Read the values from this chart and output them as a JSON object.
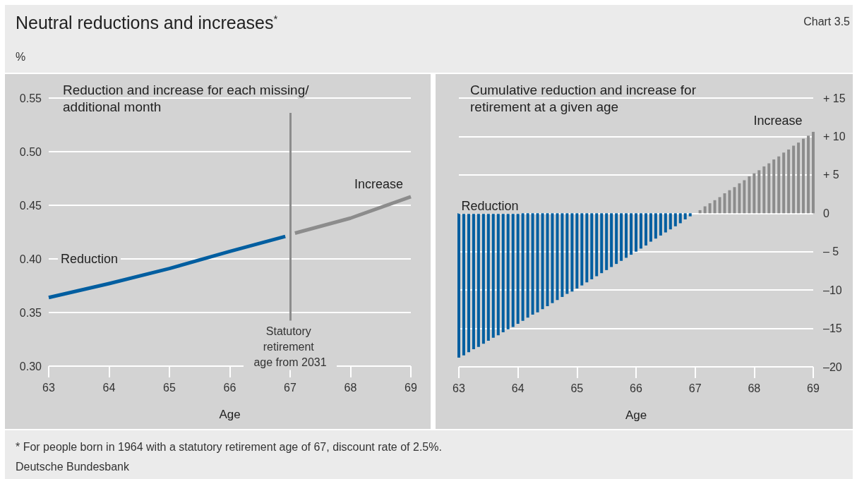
{
  "chart_data": [
    {
      "type": "line",
      "title": "Reduction and increase for each missing/ additional month",
      "xlabel": "Age",
      "ylabel": "%",
      "annotations": [
        "Neutral reductions and increases$^{*}$",
        "Chart 3.5",
        "* For people born in 1964 with a statutory retirement age of 67, discount rate of 2.5%.",
        "Deutsche Bundesbank"
      ],
      "series": [
        {
          "name": "Reduction",
          "color": "#005ea0",
          "x": [
            63,
            64,
            65,
            66,
            66.92
          ],
          "values": [
            0.364,
            0.377,
            0.391,
            0.407,
            0.421
          ]
        },
        {
          "name": "Increase",
          "color": "#8c8c8c",
          "x": [
            67.08,
            68,
            69
          ],
          "values": [
            0.424,
            0.438,
            0.458
          ]
        }
      ],
      "xlim": [
        63,
        69
      ],
      "xticks": [
        63,
        64,
        65,
        66,
        67,
        68,
        69
      ],
      "ylim": [
        0.3,
        0.55
      ],
      "yticks": [
        {
          "value": 0.3,
          "label": "0.30"
        },
        0.35,
        {
          "value": 0.4,
          "label": "0.40"
        },
        0.45,
        {
          "value": 0.5,
          "label": "0.50"
        },
        0.55
      ],
      "ref_lines": [
        {
          "axis": "x",
          "value": 67,
          "label": "Statutory retirement age from 2031",
          "color": "#8c8c8c"
        }
      ],
      "grid": "y",
      "marker": "none",
      "line_style": "solid"
    },
    {
      "type": "bar",
      "title": "Cumulative reduction and increase for retirement at a given age",
      "xlabel": "Age",
      "series": [
        {
          "name": "Reduction",
          "color": "#005ea0",
          "x": [
            63,
            63.083,
            63.167,
            63.25,
            63.333,
            63.417,
            63.5,
            63.583,
            63.667,
            63.75,
            63.833,
            63.917,
            64,
            64.083,
            64.167,
            64.25,
            64.333,
            64.417,
            64.5,
            64.583,
            64.667,
            64.75,
            64.833,
            64.917,
            65,
            65.083,
            65.167,
            65.25,
            65.333,
            65.417,
            65.5,
            65.583,
            65.667,
            65.75,
            65.833,
            65.917,
            66,
            66.083,
            66.167,
            66.25,
            66.333,
            66.417,
            66.5,
            66.583,
            66.667,
            66.75,
            66.833,
            66.917
          ],
          "values": [
            -18.8,
            -18.5,
            -18.1,
            -17.7,
            -17.4,
            -17.0,
            -16.6,
            -16.2,
            -15.9,
            -15.5,
            -15.1,
            -14.8,
            -14.4,
            -14.0,
            -13.6,
            -13.2,
            -12.9,
            -12.5,
            -12.1,
            -11.7,
            -11.3,
            -10.9,
            -10.5,
            -10.2,
            -9.8,
            -9.4,
            -9.0,
            -8.6,
            -8.2,
            -7.8,
            -7.4,
            -7.0,
            -6.6,
            -6.2,
            -5.8,
            -5.4,
            -5.0,
            -4.6,
            -4.2,
            -3.7,
            -3.3,
            -2.9,
            -2.5,
            -2.1,
            -1.7,
            -1.3,
            -0.8,
            -0.4
          ]
        },
        {
          "name": "Increase",
          "color": "#8c8c8c",
          "x": [
            67.083,
            67.167,
            67.25,
            67.333,
            67.417,
            67.5,
            67.583,
            67.667,
            67.75,
            67.833,
            67.917,
            68,
            68.083,
            68.167,
            68.25,
            68.333,
            68.417,
            68.5,
            68.583,
            68.667,
            68.75,
            68.833,
            68.917,
            69
          ],
          "values": [
            0.4,
            0.9,
            1.3,
            1.7,
            2.1,
            2.6,
            3.0,
            3.4,
            3.9,
            4.3,
            4.8,
            5.2,
            5.6,
            6.1,
            6.5,
            7.0,
            7.4,
            7.9,
            8.3,
            8.8,
            9.2,
            9.7,
            10.1,
            10.6
          ]
        }
      ],
      "xlim": [
        63,
        69
      ],
      "xticks": [
        63,
        64,
        65,
        66,
        67,
        68,
        69
      ],
      "ylim": [
        -20,
        15
      ],
      "yticks": [
        {
          "value": -20,
          "label": "–20"
        },
        {
          "value": -15,
          "label": "–15"
        },
        {
          "value": -10,
          "label": "–10"
        },
        {
          "value": -5,
          "label": "– 5"
        },
        0,
        {
          "value": 5,
          "label": "+ 5"
        },
        {
          "value": 10,
          "label": "+ 10"
        },
        {
          "value": 15,
          "label": "+ 15"
        }
      ],
      "grid": "y"
    }
  ]
}
